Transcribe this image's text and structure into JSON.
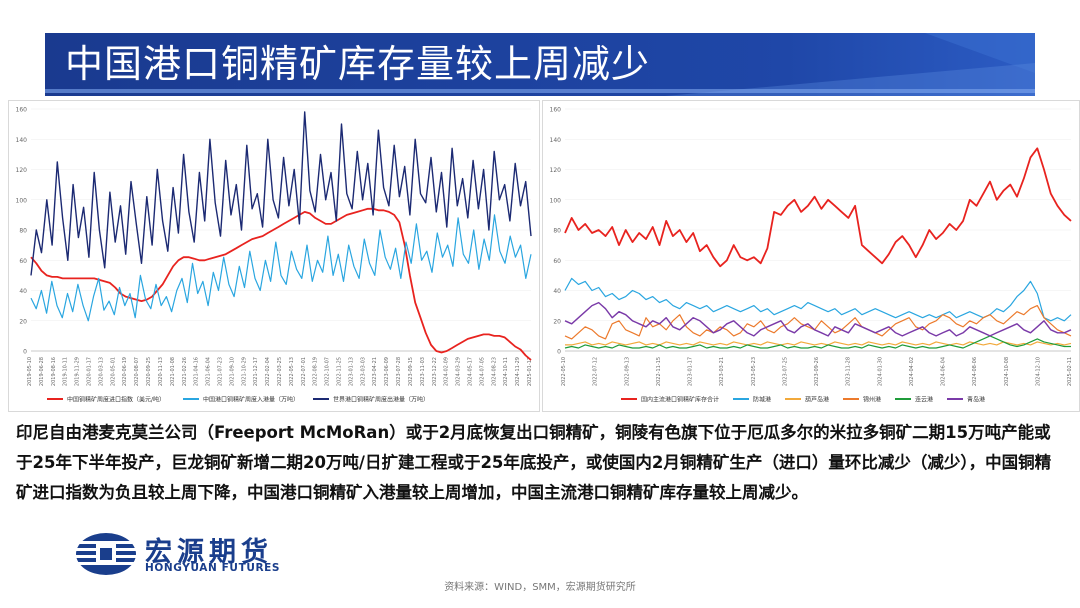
{
  "page": {
    "title": "中国港口铜精矿库存量较上周减少"
  },
  "body_text": "印尼自由港麦克莫兰公司（Freeport McMoRan）或于2月底恢复出口铜精矿，铜陵有色旗下位于厄瓜多尔的米拉多铜矿二期15万吨产能或于25年下半年投产，巨龙铜矿新增二期20万吨/日扩建工程或于25年底投产，或使国内2月铜精矿生产（进口）量环比减少（减少），中国铜精矿进口指数为负且较上周下降，中国港口铜精矿入港量较上周增加，中国主流港口铜精矿库存量较上周减少。",
  "logo": {
    "name_cn": "宏源期货",
    "name_en": "HONGYUAN FUTURES"
  },
  "source": "资料来源：WIND，SMM，宏源期货研究所",
  "colors": {
    "title_bg": "#1a3a8f",
    "accent": "#3a6fd0",
    "red": "#e8231f",
    "cyan": "#2aa6e0",
    "navy": "#1c2a73"
  },
  "chart_data": [
    {
      "type": "line",
      "title": "",
      "ylim": [
        0,
        160
      ],
      "yticks": [
        "0",
        "20",
        "40",
        "60",
        "80",
        "100",
        "120",
        "140",
        "160"
      ],
      "xticks": [
        "2019-05-10",
        "2019-06-28",
        "2019-08-16",
        "2019-10-11",
        "2019-11-29",
        "2020-01-17",
        "2020-03-13",
        "2020-05-01",
        "2020-06-19",
        "2020-08-07",
        "2020-09-25",
        "2020-11-13",
        "2021-01-08",
        "2021-02-26",
        "2021-04-16",
        "2021-06-04",
        "2021-07-23",
        "2021-09-10",
        "2021-10-29",
        "2021-12-17",
        "2022-02-04",
        "2022-03-25",
        "2022-05-13",
        "2022-07-01",
        "2022-08-19",
        "2022-10-07",
        "2022-11-25",
        "2023-01-13",
        "2023-03-03",
        "2023-04-21",
        "2023-06-09",
        "2023-07-28",
        "2023-09-15",
        "2023-11-03",
        "2023-12-22",
        "2024-02-09",
        "2024-03-29",
        "2024-05-17",
        "2024-07-05",
        "2024-08-23",
        "2024-10-11",
        "2024-11-29",
        "2025-01-17"
      ],
      "legend": [
        "中国铜精矿周度进口指数（美元/吨）",
        "中国港口铜精矿周度入港量（万吨）",
        "世界港口铜精矿周度出港量（万吨）"
      ],
      "series": [
        {
          "name": "中国铜精矿周度进口指数（美元/吨）",
          "color": "#e8231f",
          "width": 1.8,
          "values": [
            62,
            58,
            53,
            50,
            49,
            49,
            48,
            48,
            48,
            48,
            48,
            48,
            48,
            47,
            46,
            45,
            42,
            38,
            36,
            35,
            34,
            33,
            34,
            36,
            40,
            44,
            50,
            56,
            60,
            62,
            62,
            61,
            60,
            60,
            61,
            62,
            63,
            64,
            66,
            68,
            70,
            72,
            74,
            75,
            76,
            78,
            80,
            82,
            84,
            86,
            88,
            90,
            92,
            91,
            88,
            86,
            84,
            84,
            86,
            88,
            90,
            91,
            92,
            93,
            94,
            94,
            93,
            93,
            92,
            90,
            85,
            70,
            50,
            32,
            22,
            12,
            4,
            0,
            -1,
            0,
            2,
            4,
            6,
            8,
            9,
            10,
            11,
            11,
            10,
            10,
            9,
            6,
            3,
            1,
            -3,
            -6
          ]
        },
        {
          "name": "中国港口铜精矿周度入港量（万吨）",
          "color": "#2aa6e0",
          "width": 1.2,
          "values": [
            35,
            28,
            40,
            25,
            46,
            30,
            22,
            38,
            26,
            44,
            30,
            20,
            36,
            48,
            27,
            33,
            24,
            42,
            30,
            38,
            22,
            50,
            34,
            28,
            44,
            30,
            36,
            26,
            40,
            48,
            32,
            58,
            38,
            46,
            30,
            52,
            40,
            62,
            44,
            36,
            56,
            42,
            66,
            48,
            40,
            60,
            46,
            72,
            50,
            44,
            66,
            54,
            48,
            70,
            46,
            60,
            52,
            76,
            50,
            64,
            46,
            70,
            56,
            48,
            74,
            58,
            50,
            80,
            62,
            54,
            68,
            48,
            72,
            58,
            84,
            60,
            66,
            52,
            78,
            62,
            70,
            56,
            88,
            64,
            58,
            80,
            54,
            74,
            60,
            90,
            66,
            58,
            76,
            62,
            70,
            48,
            64
          ]
        },
        {
          "name": "世界港口铜精矿周度出港量（万吨）",
          "color": "#1c2a73",
          "width": 1.4,
          "values": [
            50,
            80,
            65,
            100,
            70,
            125,
            88,
            60,
            110,
            75,
            95,
            62,
            118,
            80,
            55,
            105,
            72,
            96,
            64,
            112,
            84,
            58,
            102,
            70,
            120,
            86,
            66,
            108,
            78,
            130,
            92,
            72,
            118,
            86,
            140,
            98,
            76,
            126,
            90,
            110,
            80,
            136,
            94,
            104,
            82,
            140,
            100,
            88,
            128,
            96,
            120,
            84,
            158,
            106,
            92,
            130,
            100,
            118,
            86,
            150,
            104,
            94,
            132,
            100,
            124,
            90,
            146,
            108,
            96,
            136,
            102,
            122,
            90,
            140,
            104,
            98,
            128,
            92,
            118,
            82,
            134,
            96,
            114,
            88,
            126,
            94,
            120,
            80,
            132,
            100,
            110,
            86,
            124,
            96,
            112,
            76
          ]
        }
      ]
    },
    {
      "type": "line",
      "title": "",
      "ylim": [
        0,
        160
      ],
      "yticks": [
        "0",
        "20",
        "40",
        "60",
        "80",
        "100",
        "120",
        "140",
        "160"
      ],
      "xticks": [
        "2022-05-10",
        "2022-07-12",
        "2022-09-13",
        "2022-11-15",
        "2023-01-17",
        "2023-03-21",
        "2023-05-23",
        "2023-07-25",
        "2023-09-26",
        "2023-11-28",
        "2024-01-30",
        "2024-04-02",
        "2024-06-04",
        "2024-08-06",
        "2024-10-08",
        "2024-12-10",
        "2025-02-11"
      ],
      "legend": [
        "国内主流港口铜精矿库存合计",
        "防城港",
        "葫芦岛港",
        "锦州港",
        "连云港",
        "青岛港"
      ],
      "series": [
        {
          "name": "国内主流港口铜精矿库存合计",
          "color": "#e8231f",
          "width": 1.8,
          "values": [
            78,
            88,
            80,
            84,
            78,
            80,
            76,
            82,
            70,
            80,
            72,
            78,
            74,
            82,
            70,
            86,
            76,
            80,
            72,
            78,
            66,
            70,
            62,
            56,
            60,
            70,
            62,
            60,
            62,
            58,
            68,
            92,
            90,
            96,
            100,
            92,
            96,
            102,
            94,
            100,
            96,
            92,
            88,
            96,
            70,
            66,
            62,
            58,
            64,
            72,
            76,
            70,
            62,
            70,
            80,
            74,
            78,
            84,
            80,
            86,
            100,
            96,
            104,
            112,
            100,
            106,
            110,
            102,
            114,
            128,
            134,
            120,
            104,
            96,
            90,
            86
          ]
        },
        {
          "name": "防城港",
          "color": "#2aa6e0",
          "width": 1.2,
          "values": [
            40,
            48,
            44,
            46,
            40,
            42,
            36,
            38,
            34,
            36,
            40,
            38,
            34,
            36,
            32,
            34,
            30,
            28,
            32,
            30,
            28,
            30,
            26,
            28,
            30,
            28,
            26,
            28,
            30,
            26,
            28,
            24,
            26,
            28,
            30,
            28,
            32,
            30,
            28,
            26,
            28,
            24,
            26,
            28,
            24,
            26,
            28,
            26,
            24,
            22,
            24,
            26,
            24,
            22,
            24,
            22,
            24,
            26,
            22,
            24,
            26,
            24,
            22,
            24,
            28,
            26,
            30,
            36,
            40,
            46,
            38,
            22,
            20,
            22,
            20,
            24
          ]
        },
        {
          "name": "葫芦岛港",
          "color": "#f2a93b",
          "width": 1.2,
          "values": [
            4,
            4,
            5,
            6,
            4,
            5,
            4,
            6,
            5,
            4,
            5,
            6,
            4,
            5,
            4,
            6,
            5,
            4,
            5,
            4,
            6,
            5,
            4,
            5,
            4,
            6,
            5,
            4,
            5,
            4,
            6,
            5,
            4,
            5,
            4,
            6,
            5,
            4,
            5,
            4,
            6,
            5,
            4,
            5,
            4,
            6,
            5,
            4,
            5,
            4,
            6,
            5,
            4,
            5,
            4,
            6,
            5,
            4,
            5,
            4,
            6,
            5,
            4,
            5,
            4,
            6,
            5,
            4,
            5,
            4,
            6,
            5,
            4,
            5,
            4,
            5
          ]
        },
        {
          "name": "锦州港",
          "color": "#ec7a2c",
          "width": 1.2,
          "values": [
            10,
            8,
            12,
            16,
            14,
            10,
            8,
            18,
            20,
            14,
            12,
            10,
            22,
            16,
            18,
            14,
            20,
            24,
            16,
            12,
            10,
            14,
            12,
            16,
            14,
            10,
            12,
            18,
            16,
            20,
            14,
            12,
            16,
            18,
            22,
            18,
            16,
            14,
            20,
            16,
            12,
            14,
            18,
            22,
            16,
            14,
            12,
            10,
            14,
            18,
            20,
            22,
            16,
            14,
            18,
            20,
            24,
            22,
            18,
            16,
            20,
            18,
            22,
            24,
            20,
            18,
            22,
            26,
            24,
            28,
            30,
            22,
            18,
            14,
            12,
            10
          ]
        },
        {
          "name": "连云港",
          "color": "#1f9c3a",
          "width": 1.2,
          "values": [
            2,
            3,
            2,
            4,
            3,
            2,
            3,
            2,
            4,
            3,
            2,
            2,
            3,
            2,
            4,
            2,
            3,
            2,
            2,
            3,
            4,
            2,
            3,
            2,
            2,
            3,
            2,
            4,
            3,
            2,
            2,
            3,
            4,
            2,
            3,
            2,
            2,
            3,
            2,
            4,
            3,
            2,
            2,
            3,
            2,
            4,
            3,
            2,
            3,
            2,
            4,
            3,
            2,
            3,
            2,
            2,
            3,
            4,
            3,
            2,
            4,
            6,
            8,
            10,
            8,
            6,
            4,
            3,
            4,
            6,
            8,
            6,
            5,
            4,
            3,
            3
          ]
        },
        {
          "name": "青岛港",
          "color": "#7a3aa8",
          "width": 1.4,
          "values": [
            20,
            18,
            22,
            26,
            30,
            32,
            28,
            22,
            26,
            24,
            20,
            18,
            16,
            20,
            18,
            22,
            16,
            14,
            18,
            22,
            20,
            16,
            12,
            14,
            18,
            20,
            16,
            12,
            10,
            14,
            16,
            18,
            20,
            14,
            12,
            16,
            18,
            14,
            12,
            10,
            16,
            14,
            12,
            18,
            16,
            14,
            12,
            14,
            16,
            12,
            10,
            12,
            14,
            16,
            12,
            10,
            12,
            14,
            10,
            12,
            16,
            14,
            12,
            10,
            12,
            14,
            16,
            18,
            14,
            12,
            16,
            20,
            14,
            12,
            12,
            14
          ]
        }
      ]
    }
  ]
}
